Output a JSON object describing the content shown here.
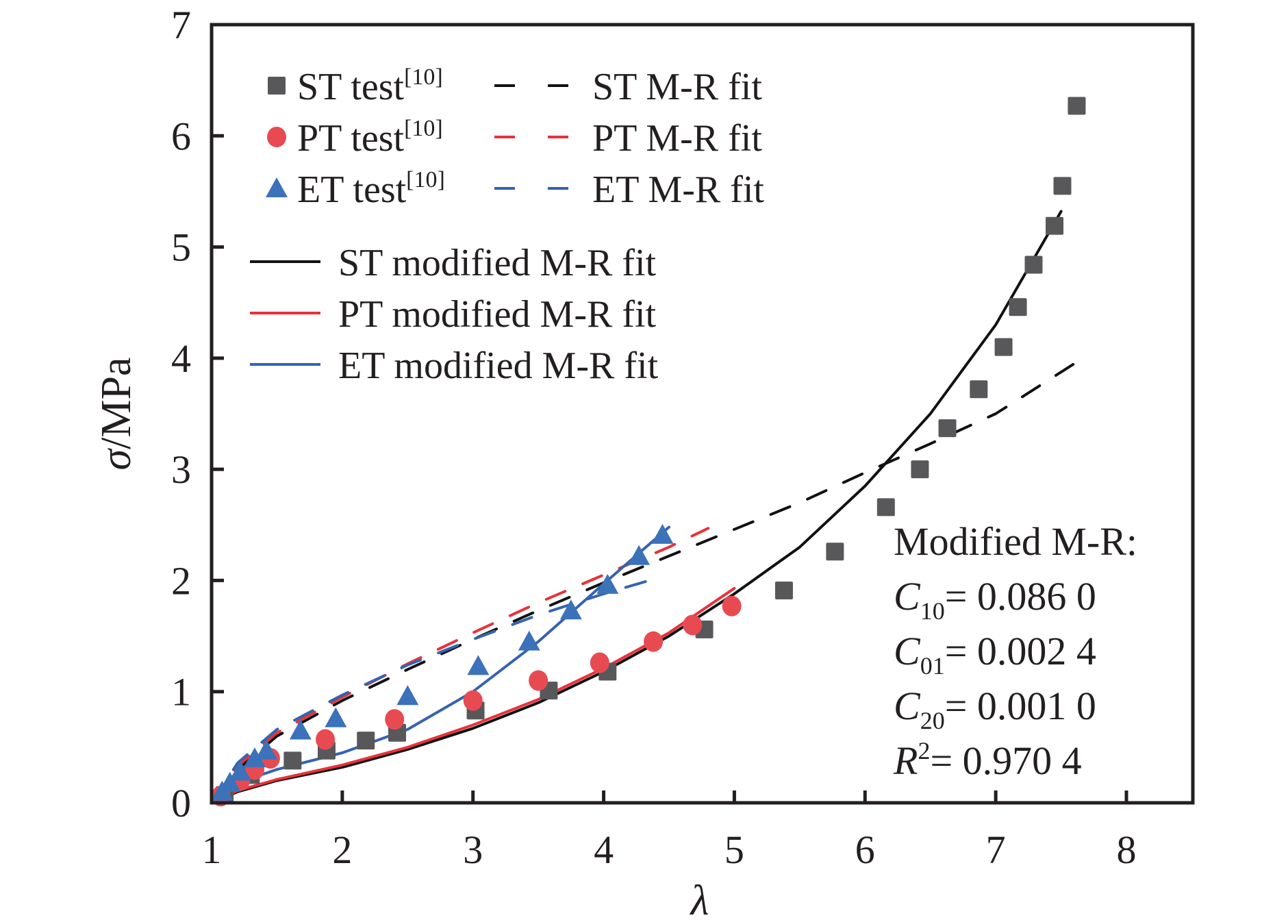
{
  "chart_data": {
    "type": "scatter",
    "title": "",
    "xlabel": "λ",
    "ylabel_symbol": "σ",
    "ylabel_unit": "/MPa",
    "xlim": [
      1,
      8.5
    ],
    "ylim": [
      0,
      7
    ],
    "xticks": [
      "1",
      "2",
      "3",
      "4",
      "5",
      "6",
      "7",
      "8"
    ],
    "yticks": [
      "0",
      "1",
      "2",
      "3",
      "4",
      "5",
      "6",
      "7"
    ],
    "grid": false,
    "legend_position": "top-left",
    "series": [
      {
        "name": "ST test",
        "ref": "[10]",
        "kind": "marker",
        "marker": "square",
        "color": "#58585a",
        "x": [
          1.1,
          1.3,
          1.62,
          1.88,
          2.18,
          2.42,
          3.02,
          3.58,
          4.03,
          4.77,
          5.38,
          5.77,
          6.16,
          6.42,
          6.63,
          6.87,
          7.06,
          7.17,
          7.29,
          7.45,
          7.51,
          7.62
        ],
        "y": [
          0.07,
          0.25,
          0.38,
          0.47,
          0.56,
          0.63,
          0.83,
          1.01,
          1.18,
          1.56,
          1.91,
          2.26,
          2.66,
          3.0,
          3.37,
          3.72,
          4.1,
          4.46,
          4.84,
          5.19,
          5.55,
          6.27
        ]
      },
      {
        "name": "PT test",
        "ref": "[10]",
        "kind": "marker",
        "marker": "circle",
        "color": "#e84a52",
        "x": [
          1.07,
          1.22,
          1.33,
          1.45,
          1.87,
          2.4,
          3.0,
          3.5,
          3.97,
          4.38,
          4.68,
          4.98
        ],
        "y": [
          0.06,
          0.2,
          0.3,
          0.4,
          0.57,
          0.75,
          0.92,
          1.1,
          1.26,
          1.45,
          1.6,
          1.77
        ]
      },
      {
        "name": "ET test",
        "ref": "[10]",
        "kind": "marker",
        "marker": "triangle",
        "color": "#3b72b9",
        "x": [
          1.08,
          1.14,
          1.22,
          1.33,
          1.42,
          1.68,
          1.95,
          2.5,
          3.04,
          3.43,
          3.75,
          4.03,
          4.27,
          4.45
        ],
        "y": [
          0.1,
          0.18,
          0.28,
          0.4,
          0.47,
          0.65,
          0.76,
          0.96,
          1.23,
          1.45,
          1.73,
          1.96,
          2.22,
          2.41
        ]
      },
      {
        "name": "ST M-R fit",
        "kind": "line",
        "dash": true,
        "color": "#111111",
        "x": [
          1,
          1.2,
          1.5,
          2,
          2.5,
          3,
          3.5,
          4,
          4.5,
          5,
          5.5,
          6,
          6.5,
          7,
          7.6
        ],
        "y": [
          0,
          0.3,
          0.6,
          0.92,
          1.2,
          1.47,
          1.73,
          1.98,
          2.22,
          2.46,
          2.7,
          2.97,
          3.23,
          3.5,
          3.95
        ]
      },
      {
        "name": "PT M-R fit",
        "kind": "line",
        "dash": true,
        "color": "#e8323a",
        "x": [
          1,
          1.2,
          1.5,
          2,
          2.5,
          3,
          3.5,
          4,
          4.5,
          4.8
        ],
        "y": [
          0,
          0.33,
          0.63,
          0.95,
          1.25,
          1.53,
          1.8,
          2.05,
          2.3,
          2.47
        ]
      },
      {
        "name": "ET M-R fit",
        "kind": "line",
        "dash": true,
        "color": "#3563b0",
        "x": [
          1,
          1.2,
          1.5,
          2,
          2.5,
          3,
          3.5,
          4,
          4.35
        ],
        "y": [
          0,
          0.36,
          0.66,
          0.97,
          1.24,
          1.47,
          1.69,
          1.88,
          2.0
        ]
      },
      {
        "name": "ST modified M-R fit",
        "kind": "line",
        "dash": false,
        "color": "#111111",
        "x": [
          1,
          1.2,
          1.5,
          2,
          2.5,
          3,
          3.5,
          4,
          4.5,
          5,
          5.5,
          6,
          6.5,
          7,
          7.5
        ],
        "y": [
          0,
          0.1,
          0.2,
          0.32,
          0.48,
          0.67,
          0.9,
          1.18,
          1.5,
          1.88,
          2.3,
          2.85,
          3.5,
          4.3,
          5.32
        ]
      },
      {
        "name": "PT modified M-R fit",
        "kind": "line",
        "dash": false,
        "color": "#e8323a",
        "x": [
          1,
          1.2,
          1.5,
          2,
          2.5,
          3,
          3.5,
          4,
          4.5,
          5
        ],
        "y": [
          0,
          0.11,
          0.21,
          0.34,
          0.5,
          0.7,
          0.93,
          1.21,
          1.53,
          1.93
        ]
      },
      {
        "name": "ET modified M-R fit",
        "kind": "line",
        "dash": false,
        "color": "#3563b0",
        "x": [
          1,
          1.1,
          1.3,
          1.5,
          2,
          2.5,
          3,
          3.5,
          4,
          4.5
        ],
        "y": [
          0,
          0.12,
          0.22,
          0.3,
          0.45,
          0.66,
          1.0,
          1.45,
          1.97,
          2.48
        ]
      }
    ],
    "annotation": {
      "heading": "Modified M-R:",
      "params": [
        {
          "symbol": "C",
          "sub": "10",
          "sup": "",
          "value": "= 0.086 0"
        },
        {
          "symbol": "C",
          "sub": "01",
          "sup": "",
          "value": "= 0.002 4"
        },
        {
          "symbol": "C",
          "sub": "20",
          "sup": "",
          "value": "= 0.001 0"
        },
        {
          "symbol": "R",
          "sub": "",
          "sup": "2",
          "value": "= 0.970 4"
        }
      ]
    }
  }
}
